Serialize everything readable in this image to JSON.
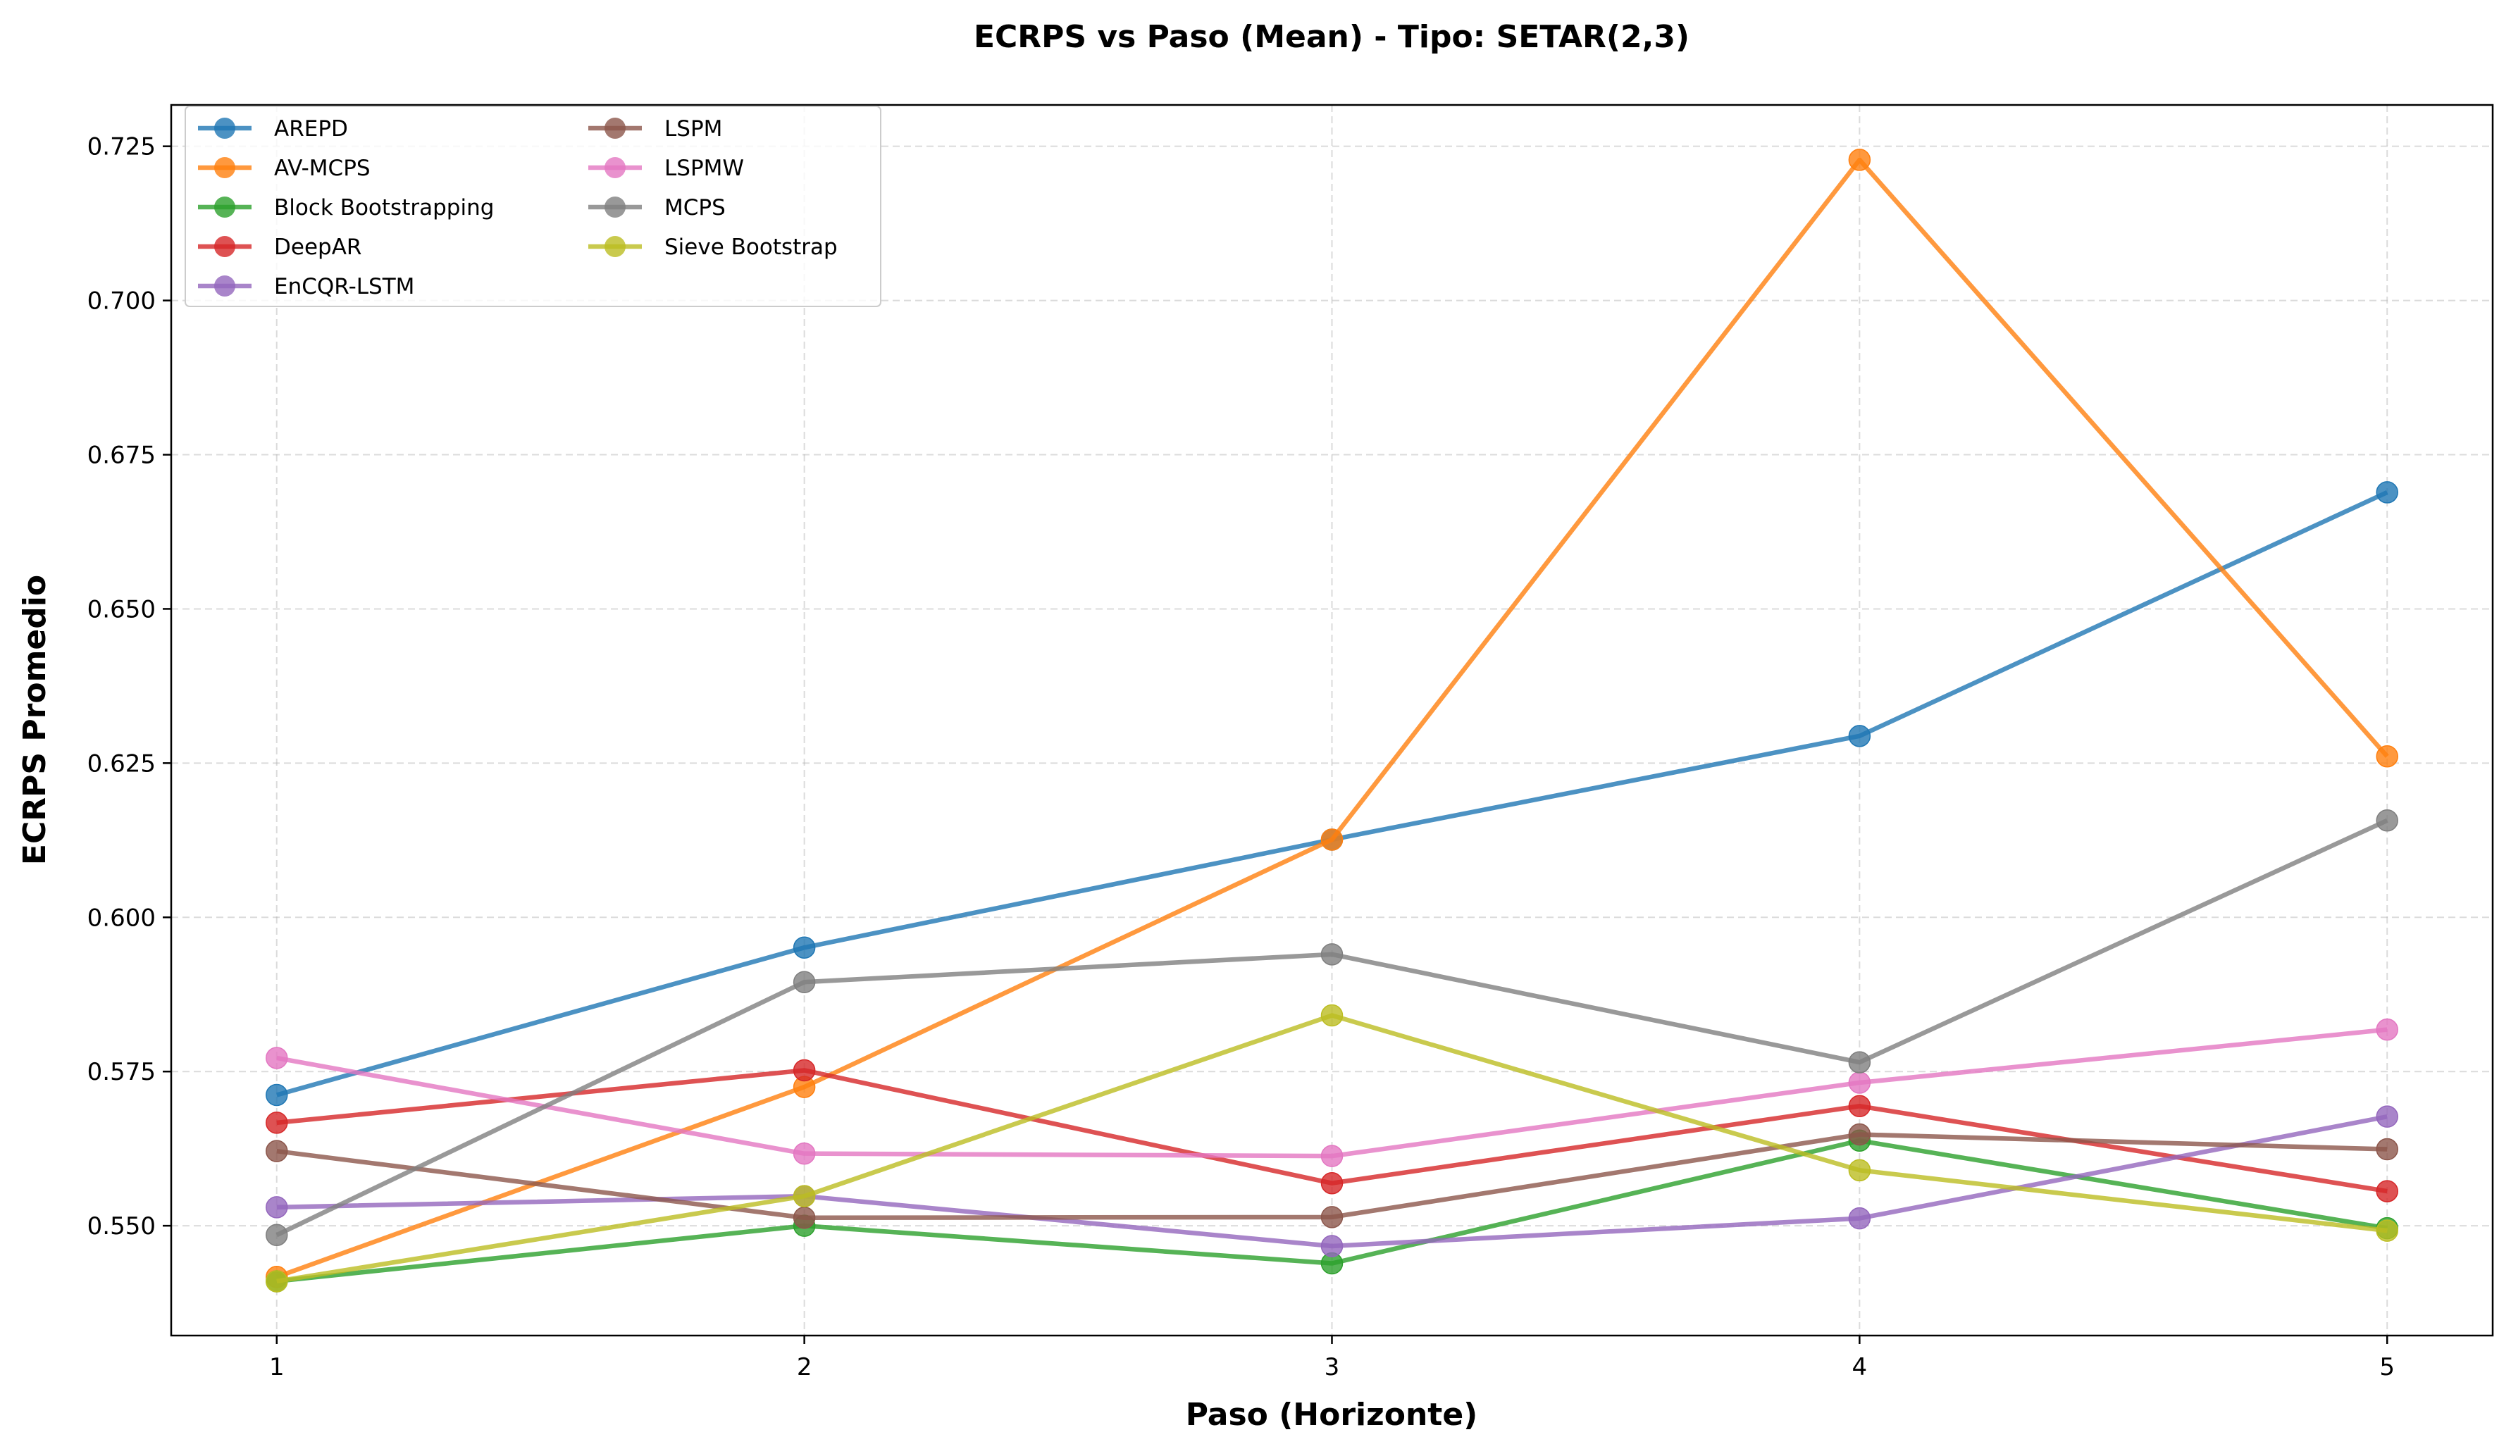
{
  "chart_data": {
    "type": "line",
    "title": "ECRPS vs Paso (Mean) - Tipo: SETAR(2,3)",
    "xlabel": "Paso (Horizonte)",
    "ylabel": "ECRPS Promedio",
    "x": [
      1,
      2,
      3,
      4,
      5
    ],
    "x_ticks": [
      "1",
      "2",
      "3",
      "4",
      "5"
    ],
    "xlim": [
      0.8,
      5.2
    ],
    "ylim": [
      0.5322,
      0.7317
    ],
    "y_ticks": [
      "0.550",
      "0.575",
      "0.600",
      "0.625",
      "0.650",
      "0.675",
      "0.700",
      "0.725"
    ],
    "grid": true,
    "legend_position": "top-left",
    "legend_columns": 2,
    "series": [
      {
        "name": "AREPD",
        "color": "#1f77b4",
        "values": [
          0.5712,
          0.5951,
          0.6126,
          0.6294,
          0.6689
        ]
      },
      {
        "name": "AV-MCPS",
        "color": "#ff7f0e",
        "values": [
          0.5417,
          0.5725,
          0.6126,
          0.7228,
          0.6261
        ]
      },
      {
        "name": "Block Bootstrapping",
        "color": "#2ca02c",
        "values": [
          0.541,
          0.55,
          0.5439,
          0.5638,
          0.5496
        ]
      },
      {
        "name": "DeepAR",
        "color": "#d62728",
        "values": [
          0.5667,
          0.5752,
          0.5569,
          0.5694,
          0.5556
        ]
      },
      {
        "name": "EnCQR-LSTM",
        "color": "#9467bd",
        "values": [
          0.553,
          0.5548,
          0.5467,
          0.5512,
          0.5677
        ]
      },
      {
        "name": "LSPM",
        "color": "#8c564b",
        "values": [
          0.5621,
          0.5513,
          0.5514,
          0.5648,
          0.5624
        ]
      },
      {
        "name": "LSPMW",
        "color": "#e377c2",
        "values": [
          0.5772,
          0.5617,
          0.5613,
          0.5732,
          0.5818
        ]
      },
      {
        "name": "MCPS",
        "color": "#7f7f7f",
        "values": [
          0.5485,
          0.5895,
          0.594,
          0.5765,
          0.6157
        ]
      },
      {
        "name": "Sieve Bootstrap",
        "color": "#bcbd22",
        "values": [
          0.541,
          0.5548,
          0.5841,
          0.559,
          0.5492
        ]
      }
    ]
  }
}
